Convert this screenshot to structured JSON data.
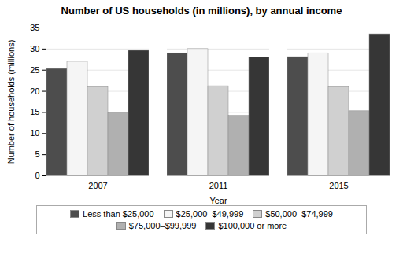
{
  "chart_data": {
    "type": "bar",
    "title": "Number of US households (in millions), by annual income",
    "xlabel": "Year",
    "ylabel": "Number of households (millions)",
    "categories": [
      "2007",
      "2011",
      "2015"
    ],
    "series": [
      {
        "name": "Less than $25,000",
        "color": "#4d4d4d",
        "values": [
          25.3,
          29.0,
          28.1
        ]
      },
      {
        "name": "$25,000–$49,999",
        "color": "#f5f5f5",
        "values": [
          27.0,
          30.0,
          29.0
        ]
      },
      {
        "name": "$50,000–$74,999",
        "color": "#d0d0d0",
        "values": [
          21.0,
          21.2,
          21.0
        ]
      },
      {
        "name": "$75,000–$99,999",
        "color": "#b0b0b0",
        "values": [
          14.8,
          14.2,
          15.3
        ]
      },
      {
        "name": "$100,000 or more",
        "color": "#363636",
        "values": [
          29.6,
          28.0,
          33.5
        ]
      }
    ],
    "ylim": [
      0,
      35
    ],
    "yticks": [
      0,
      5,
      10,
      15,
      20,
      25,
      30,
      35
    ],
    "grid": true,
    "legend": "bottom"
  }
}
